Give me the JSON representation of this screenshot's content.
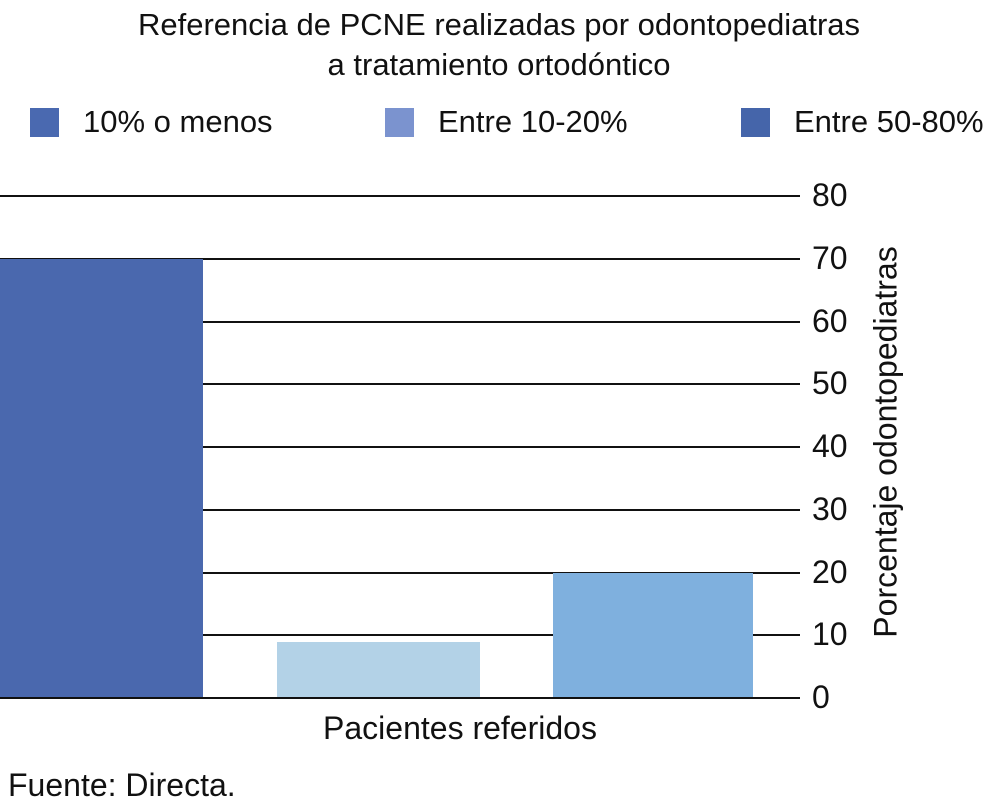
{
  "title": {
    "line1": "Referencia de PCNE realizadas por odontopediatras",
    "line2": "a tratamiento ortodóntico"
  },
  "chart_data": {
    "type": "bar",
    "title": "Referencia de PCNE realizadas por odontopediatras a tratamiento ortodóntico",
    "categories": [
      "10% o menos",
      "Entre 10-20%",
      "Entre 50-80%"
    ],
    "values": [
      70,
      9,
      20
    ],
    "bar_colors": [
      "#4a68ae",
      "#b3d2e7",
      "#7fb0de"
    ],
    "legend": [
      {
        "label": "10% o menos",
        "swatch_color": "#4a69b0"
      },
      {
        "label": "Entre 10-20%",
        "swatch_color": "#7b93cf"
      },
      {
        "label": "Entre 50-80%",
        "swatch_color": "#4565aa"
      }
    ],
    "legend_position": "top",
    "xlabel": "Pacientes referidos",
    "ylabel": "Porcentaje odontopediatras",
    "ylim": [
      0,
      80
    ],
    "yticks": [
      0,
      10,
      20,
      30,
      40,
      50,
      60,
      70,
      80
    ],
    "grid": "horizontal",
    "y_axis_side": "right",
    "source": "Fuente: Directa."
  },
  "colors": {
    "text": "#111111",
    "gridline": "#111111",
    "background": "#ffffff"
  }
}
